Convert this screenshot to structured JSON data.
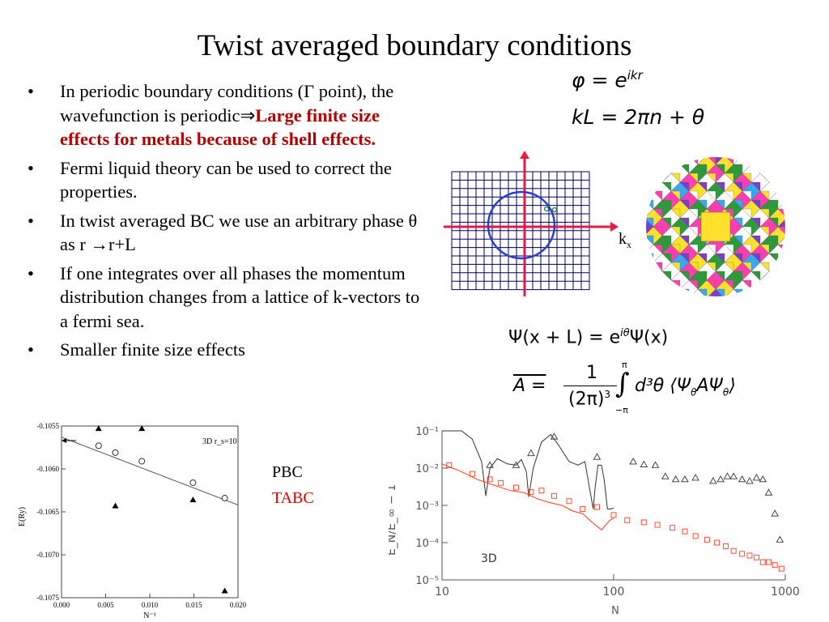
{
  "title": "Twist averaged boundary conditions",
  "bullets": {
    "b1_pre": "In periodic boundary conditions (Γ point), the wavefunction is periodic",
    "b1_arrow": "⇒",
    "b1_red": "Large finite size effects for metals because of shell effects.",
    "b2": "Fermi liquid theory can be used to correct the properties.",
    "b3_pre": "In twist averaged BC we use an arbitrary phase θ  as r ",
    "b3_arrow": "→",
    "b3_post": "r+L",
    "b4": "If one integrates over all phases the momentum distribution changes from a lattice of k-vectors to a fermi sea.",
    "b5": "Smaller finite size effects"
  },
  "equations": {
    "eq1_lhs": "φ = e",
    "eq1_sup": "ikr",
    "eq2": "kL = 2πn + θ",
    "eq3": "Ψ(x + L) = e",
    "eq3_sup": "iθ",
    "eq3_post": "Ψ(x)",
    "eq4_lhs": "A =",
    "eq4_num": "1",
    "eq4_den": "(2π)",
    "eq4_den_sup": "3",
    "eq4_int_upper": "π",
    "eq4_int_lower": "−π",
    "eq4_body": "d³θ ⟨Ψ",
    "eq4_sub1": "θ",
    "eq4_mid": "AΨ",
    "eq4_sub2": "θ",
    "eq4_close": "⟩"
  },
  "kgrid": {
    "axis_label": "k",
    "axis_sub": "x"
  },
  "legend": {
    "pbc": "PBC",
    "tabc": "TABC",
    "tabc_color": "#e00000"
  },
  "chart_data": [
    {
      "type": "scatter",
      "title": "",
      "annotation": "3D  r_s=10",
      "xlabel": "N⁻¹",
      "ylabel": "E(Ry)",
      "xlim": [
        0.0,
        0.02
      ],
      "ylim": [
        -0.1075,
        -0.1055
      ],
      "xticks": [
        "0.000",
        "0.005",
        "0.010",
        "0.015",
        "0.020"
      ],
      "yticks": [
        "-0.1055",
        "-0.1060",
        "-0.1065",
        "-0.1070",
        "-0.1075"
      ],
      "series": [
        {
          "marker": "triangle-filled",
          "x": [
            0.0042,
            0.0061,
            0.0091,
            0.0149,
            0.0185
          ],
          "y": [
            -0.10553,
            -0.10643,
            -0.10553,
            -0.10636,
            -0.10742
          ]
        },
        {
          "marker": "circle-open",
          "x": [
            0.0042,
            0.0061,
            0.0091,
            0.0149,
            0.0185
          ],
          "y": [
            -0.10573,
            -0.10581,
            -0.10591,
            -0.10616,
            -0.10634
          ]
        }
      ],
      "fit_line": {
        "x": [
          0.0,
          0.02
        ],
        "y": [
          -0.10563,
          -0.10642
        ]
      }
    },
    {
      "type": "scatter",
      "title": "",
      "annotation": "3D",
      "xlabel": "N",
      "ylabel": "E_N/E_∞ − 1",
      "xscale": "log",
      "yscale": "log",
      "xlim": [
        10,
        1000
      ],
      "ylim": [
        1e-05,
        0.1
      ],
      "xticks": [
        "10",
        "100",
        "1000"
      ],
      "yticks": [
        "10⁻¹",
        "10⁻²",
        "10⁻³",
        "10⁻⁴",
        "10⁻⁵"
      ],
      "series": [
        {
          "marker": "triangle-open",
          "color": "#333333",
          "x": [
            19,
            27,
            33,
            45,
            80,
            130,
            150,
            175,
            200,
            230,
            260,
            300,
            380,
            420,
            460,
            500,
            560,
            620,
            680,
            740,
            800,
            870,
            930
          ],
          "y": [
            0.012,
            0.012,
            0.025,
            0.07,
            0.02,
            0.015,
            0.0125,
            0.012,
            0.006,
            0.005,
            0.005,
            0.0055,
            0.0045,
            0.005,
            0.006,
            0.006,
            0.005,
            0.0045,
            0.0055,
            0.005,
            0.0022,
            0.0006,
            0.00012
          ]
        },
        {
          "marker": "square-open",
          "color": "#ff3b1f",
          "x": [
            11,
            15,
            19,
            22,
            27,
            33,
            38,
            45,
            55,
            66,
            80,
            100,
            120,
            150,
            180,
            220,
            260,
            300,
            350,
            400,
            450,
            500,
            560,
            620,
            680,
            740,
            800,
            870,
            950
          ],
          "y": [
            0.012,
            0.007,
            0.005,
            0.004,
            0.003,
            0.0023,
            0.0025,
            0.0018,
            0.0013,
            0.0008,
            0.0009,
            0.00055,
            0.0004,
            0.00035,
            0.0003,
            0.00025,
            0.0002,
            0.00015,
            0.00012,
            0.0001,
            8e-05,
            6e-05,
            5e-05,
            4.5e-05,
            4e-05,
            3e-05,
            3e-05,
            2.5e-05,
            2e-05
          ]
        }
      ],
      "pbc_curve": {
        "x": [
          10,
          13,
          15,
          17,
          18,
          19,
          21,
          24,
          27,
          29,
          31,
          32,
          34,
          38,
          43,
          48,
          55,
          62,
          68,
          72,
          76,
          78,
          81,
          85,
          88,
          92,
          96,
          100
        ],
        "y": [
          0.1,
          0.1,
          0.06,
          0.015,
          0.0018,
          0.01,
          0.018,
          0.013,
          0.012,
          0.017,
          0.008,
          0.0017,
          0.01,
          0.05,
          0.08,
          0.04,
          0.015,
          0.012,
          0.015,
          0.0033,
          0.0008,
          0.003,
          0.012,
          0.012,
          0.005,
          0.0008,
          0.0008,
          0.00085
        ]
      },
      "tabc_curve": {
        "x": [
          10,
          13,
          16,
          20,
          25,
          30,
          36,
          42,
          50,
          58,
          66,
          75,
          85,
          95,
          100
        ],
        "y": [
          0.013,
          0.008,
          0.005,
          0.0035,
          0.0025,
          0.0022,
          0.0015,
          0.0012,
          0.001,
          0.0007,
          0.0006,
          0.00035,
          0.00022,
          0.0004,
          0.00045
        ]
      }
    }
  ]
}
